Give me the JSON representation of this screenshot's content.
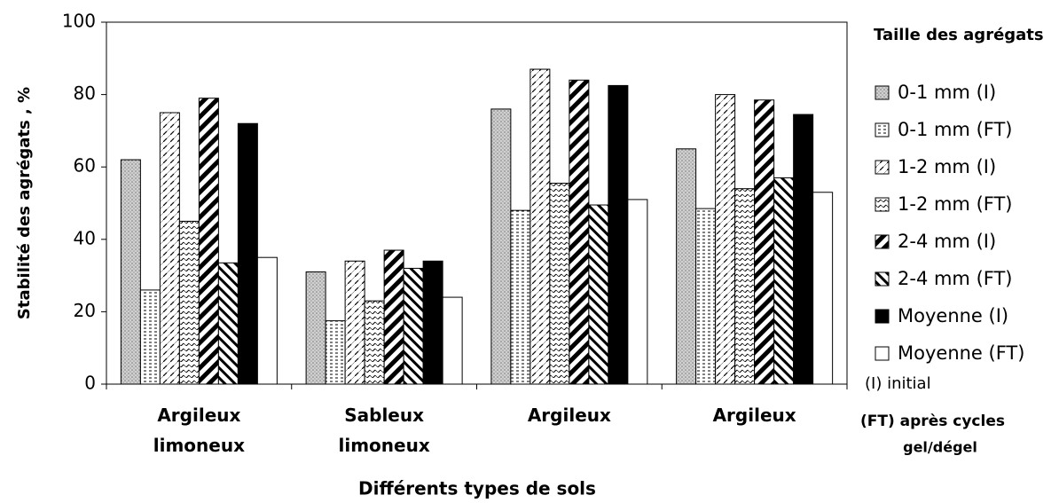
{
  "chart_data": {
    "type": "bar",
    "ylabel": "Stabilité des agrégats , %",
    "xlabel": "Différents types de sols",
    "legend_title": "Taille des agrégats",
    "annotations": [
      "(I) initial",
      "(FT) après cycles",
      "gel/dégel"
    ],
    "categories": [
      "Argileux limoneux",
      "Sableux limoneux",
      "Argileux",
      "Argileux"
    ],
    "ylim": [
      0,
      100
    ],
    "yticks": [
      0,
      20,
      40,
      60,
      80,
      100
    ],
    "legend": "right",
    "series": [
      {
        "name": "0-1 mm (I)",
        "color": "#c8c8c8",
        "pattern": "dots",
        "values": [
          62,
          31,
          76,
          65
        ]
      },
      {
        "name": "0-1 mm (FT)",
        "color": "#ffffff",
        "pattern": "hdash",
        "values": [
          26,
          17.5,
          48,
          48.5
        ]
      },
      {
        "name": "1-2 mm (I)",
        "color": "#ffffff",
        "pattern": "diagdash",
        "values": [
          75,
          34,
          87,
          80
        ]
      },
      {
        "name": "1-2 mm (FT)",
        "color": "#ffffff",
        "pattern": "cross",
        "values": [
          45,
          23,
          55.5,
          54
        ]
      },
      {
        "name": "2-4 mm (I)",
        "color": "#ffffff",
        "pattern": "thickdiag",
        "values": [
          79,
          37,
          84,
          78.5
        ]
      },
      {
        "name": "2-4 mm (FT)",
        "color": "#ffffff",
        "pattern": "diag",
        "values": [
          33.5,
          32,
          49.5,
          57
        ]
      },
      {
        "name": "Moyenne (I)",
        "color": "#000000",
        "pattern": "solid",
        "values": [
          72,
          34,
          82.5,
          74.5
        ]
      },
      {
        "name": "Moyenne (FT)",
        "color": "#ffffff",
        "pattern": "solid",
        "values": [
          35,
          24,
          51,
          53
        ]
      }
    ]
  }
}
